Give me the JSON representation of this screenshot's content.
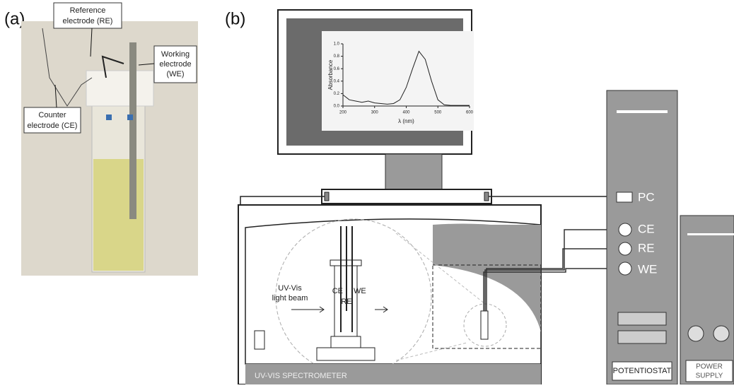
{
  "panels": {
    "a": "(a)",
    "b": "(b)"
  },
  "photo_callouts": {
    "reference": [
      "Reference",
      "electrode (RE)"
    ],
    "working": [
      "Working",
      "electrode",
      "(WE)"
    ],
    "counter": [
      "Counter",
      "electrode (CE)"
    ]
  },
  "inset_chart": {
    "type": "line",
    "y_label": "Absorbance",
    "x_label": "λ (nm)",
    "x": [
      200,
      220,
      240,
      260,
      280,
      300,
      320,
      340,
      360,
      380,
      400,
      420,
      440,
      460,
      480,
      500,
      520,
      540,
      600
    ],
    "values": [
      0.18,
      0.1,
      0.08,
      0.06,
      0.08,
      0.05,
      0.04,
      0.03,
      0.04,
      0.1,
      0.3,
      0.6,
      0.88,
      0.75,
      0.4,
      0.1,
      0.02,
      0.01,
      0.01
    ],
    "xlim": [
      200,
      600
    ],
    "ylim": [
      0,
      1.0
    ],
    "xticks": [
      200,
      300,
      400,
      500,
      600
    ],
    "yticks": [
      {
        "value": 0,
        "label": "0.0"
      },
      0.2,
      0.4,
      0.6,
      0.8,
      {
        "value": 1,
        "label": "1.0"
      }
    ]
  },
  "potentiostat_ports": [
    "PC",
    "CE",
    "RE",
    "WE"
  ],
  "cell_labels": {
    "beam": [
      "UV-Vis",
      "light beam"
    ],
    "ce": "CE",
    "re": "RE",
    "we": "WE"
  },
  "units": {
    "spectrometer": "UV-VIS SPECTROMETER",
    "potentiostat": "POTENTIOSTAT",
    "power_supply": [
      "POWER",
      "SUPPLY"
    ]
  }
}
